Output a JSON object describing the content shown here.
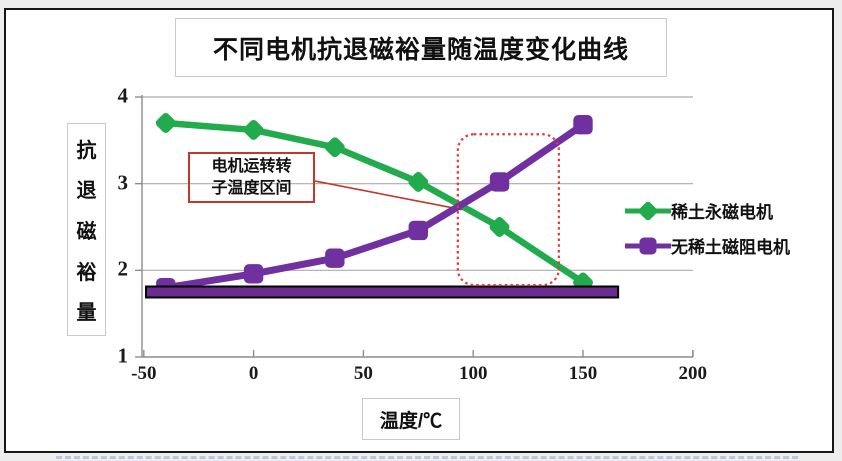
{
  "title": "不同电机抗退磁裕量随温度变化曲线",
  "callout": {
    "line1": "电机运转转",
    "line2": "子温度区间"
  },
  "colors": {
    "green_series": "#22ab4c",
    "purple_series": "#7030a0",
    "limit_bar_fill": "#6b2c91",
    "annotation_red": "#c0392b",
    "dashed_region_red": "#e03a3a",
    "gridline": "#ababab",
    "axis": "#8c8c8c"
  },
  "chart_data": {
    "type": "line",
    "title": "不同电机抗退磁裕量随温度变化曲线",
    "xlabel": "温度/℃",
    "ylabel": "抗退磁裕量",
    "xlim": [
      -50,
      200
    ],
    "ylim": [
      1,
      4
    ],
    "x_ticks": [
      -50,
      0,
      50,
      100,
      150,
      200
    ],
    "y_ticks": [
      4,
      3,
      2,
      1
    ],
    "grid": "horizontal",
    "legend_position": "right",
    "x": [
      -40,
      0,
      37,
      75,
      112,
      150
    ],
    "series": [
      {
        "name": "稀土永磁电机",
        "marker": "diamond",
        "color": "#22ab4c",
        "values": [
          3.7,
          3.62,
          3.42,
          3.02,
          2.5,
          1.86
        ]
      },
      {
        "name": "无稀土磁阻电机",
        "marker": "square",
        "color": "#7030a0",
        "values": [
          1.8,
          1.96,
          2.14,
          2.46,
          3.02,
          3.68
        ]
      }
    ],
    "annotations": {
      "callout": {
        "label": "电机运转转子温度区间",
        "line_from": [
          28,
          3.03
        ],
        "line_to": [
          95,
          2.7
        ]
      },
      "dashed_region": {
        "x1": 93,
        "x2": 139,
        "y1": 1.83,
        "y2": 3.57
      },
      "limit_bar": {
        "y": 1.75,
        "x1": -49,
        "x2": 166
      }
    }
  }
}
